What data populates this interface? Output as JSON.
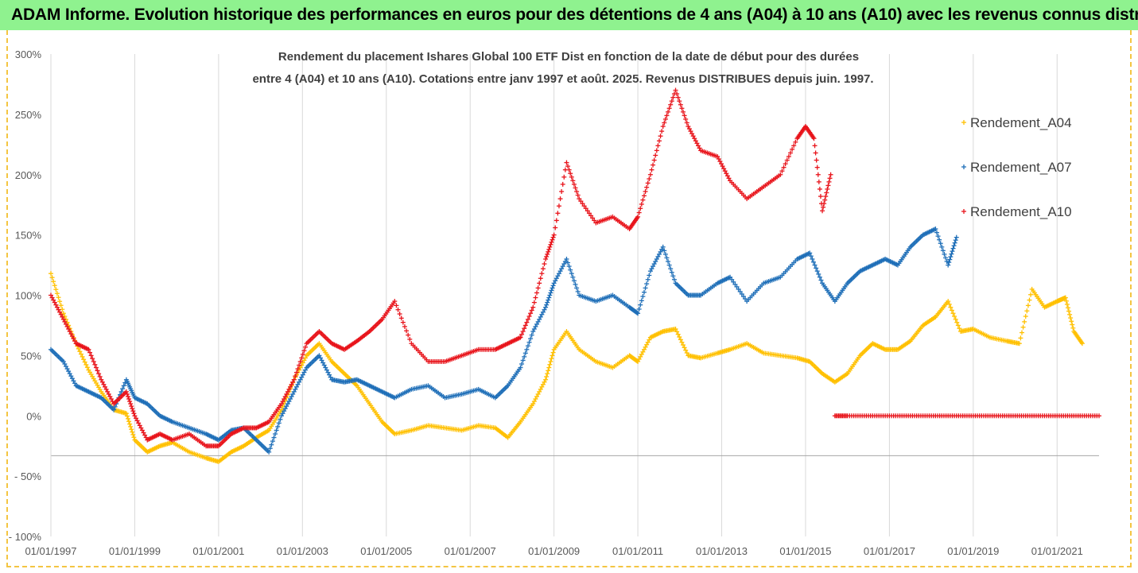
{
  "banner": {
    "title": "ADAM Informe. Evolution historique des performances en euros pour des détentions de 4 ans (A04) à 10 ans (A10) avec les revenus connus distribués"
  },
  "colors": {
    "A04": "#ffc000",
    "A07": "#1f6fb8",
    "A10": "#e8141b",
    "banner_bg": "#8ff28f",
    "gridline": "#d9d9d9"
  },
  "chart_data": {
    "type": "scatter",
    "title_lines": [
      "Rendement du placement Ishares Global 100 ETF Dist en fonction de la date de début pour des durées",
      "entre 4 (A04) et 10 ans (A10). Cotations entre janv 1997 et août. 2025. Revenus DISTRIBUES depuis juin. 1997."
    ],
    "y_ticks": [
      "300%",
      "250%",
      "200%",
      "150%",
      "100%",
      "50%",
      "0%",
      "- 50%",
      "- 100%"
    ],
    "y_tick_values": [
      300,
      250,
      200,
      150,
      100,
      50,
      0,
      -50,
      -100
    ],
    "ylim": [
      -100,
      300
    ],
    "x_ticks": [
      "01/01/1997",
      "01/01/1999",
      "01/01/2001",
      "01/01/2003",
      "01/01/2005",
      "01/01/2007",
      "01/01/2009",
      "01/01/2011",
      "01/01/2013",
      "01/01/2015",
      "01/01/2017",
      "01/01/2019",
      "01/01/2021"
    ],
    "x_tick_values": [
      1997,
      1999,
      2001,
      2003,
      2005,
      2007,
      2009,
      2011,
      2013,
      2015,
      2017,
      2019,
      2021
    ],
    "xlim": [
      1997,
      2022
    ],
    "marker": "+",
    "legend_position": "right",
    "grid": "vertical",
    "series": [
      {
        "name": "Rendement_A04",
        "key": "A04",
        "x": [
          1997.0,
          1997.3,
          1997.6,
          1997.9,
          1998.2,
          1998.5,
          1998.8,
          1999.0,
          1999.3,
          1999.6,
          1999.9,
          2000.3,
          2000.7,
          2001.0,
          2001.3,
          2001.6,
          2001.9,
          2002.2,
          2002.5,
          2002.8,
          2003.1,
          2003.4,
          2003.7,
          2004.0,
          2004.3,
          2004.6,
          2004.9,
          2005.2,
          2005.6,
          2006.0,
          2006.4,
          2006.8,
          2007.2,
          2007.6,
          2007.9,
          2008.2,
          2008.5,
          2008.8,
          2009.0,
          2009.3,
          2009.6,
          2010.0,
          2010.4,
          2010.8,
          2011.0,
          2011.3,
          2011.6,
          2011.9,
          2012.2,
          2012.5,
          2012.9,
          2013.2,
          2013.6,
          2014.0,
          2014.4,
          2014.8,
          2015.1,
          2015.4,
          2015.7,
          2016.0,
          2016.3,
          2016.6,
          2016.9,
          2017.2,
          2017.5,
          2017.8,
          2018.1,
          2018.4,
          2018.7,
          2019.0,
          2019.4,
          2019.8,
          2020.1,
          2020.4,
          2020.7,
          2021.0,
          2021.2,
          2021.4,
          2021.6
        ],
        "y": [
          118,
          85,
          60,
          38,
          20,
          5,
          2,
          -20,
          -30,
          -25,
          -22,
          -30,
          -35,
          -38,
          -30,
          -25,
          -18,
          -12,
          5,
          30,
          50,
          60,
          45,
          35,
          25,
          10,
          -5,
          -15,
          -12,
          -8,
          -10,
          -12,
          -8,
          -10,
          -18,
          -5,
          10,
          30,
          55,
          70,
          55,
          45,
          40,
          50,
          45,
          65,
          70,
          72,
          50,
          48,
          52,
          55,
          60,
          52,
          50,
          48,
          45,
          35,
          28,
          35,
          50,
          60,
          55,
          55,
          62,
          75,
          82,
          95,
          70,
          72,
          65,
          62,
          60,
          105,
          90,
          95,
          98,
          70,
          60
        ]
      },
      {
        "name": "Rendement_A07",
        "key": "A07",
        "x": [
          1997.0,
          1997.3,
          1997.6,
          1997.9,
          1998.2,
          1998.5,
          1998.8,
          1999.0,
          1999.3,
          1999.6,
          1999.9,
          2000.3,
          2000.7,
          2001.0,
          2001.3,
          2001.6,
          2001.9,
          2002.2,
          2002.5,
          2002.8,
          2003.1,
          2003.4,
          2003.7,
          2004.0,
          2004.3,
          2004.6,
          2004.9,
          2005.2,
          2005.6,
          2006.0,
          2006.4,
          2006.8,
          2007.2,
          2007.6,
          2007.9,
          2008.2,
          2008.5,
          2008.8,
          2009.0,
          2009.3,
          2009.6,
          2010.0,
          2010.4,
          2010.8,
          2011.0,
          2011.3,
          2011.6,
          2011.9,
          2012.2,
          2012.5,
          2012.9,
          2013.2,
          2013.6,
          2014.0,
          2014.4,
          2014.8,
          2015.1,
          2015.4,
          2015.7,
          2016.0,
          2016.3,
          2016.6,
          2016.9,
          2017.2,
          2017.5,
          2017.8,
          2018.1,
          2018.4,
          2018.6
        ],
        "y": [
          55,
          45,
          25,
          20,
          15,
          5,
          30,
          15,
          10,
          0,
          -5,
          -10,
          -15,
          -20,
          -12,
          -10,
          -20,
          -30,
          0,
          20,
          40,
          50,
          30,
          28,
          30,
          25,
          20,
          15,
          22,
          25,
          15,
          18,
          22,
          15,
          25,
          40,
          70,
          90,
          110,
          130,
          100,
          95,
          100,
          90,
          85,
          120,
          140,
          110,
          100,
          100,
          110,
          115,
          95,
          110,
          115,
          130,
          135,
          110,
          95,
          110,
          120,
          125,
          130,
          125,
          140,
          150,
          155,
          125,
          148
        ]
      },
      {
        "name": "Rendement_A10",
        "key": "A10",
        "x": [
          1997.0,
          1997.3,
          1997.6,
          1997.9,
          1998.2,
          1998.5,
          1998.8,
          1999.0,
          1999.3,
          1999.6,
          1999.9,
          2000.3,
          2000.7,
          2001.0,
          2001.3,
          2001.6,
          2001.9,
          2002.2,
          2002.5,
          2002.8,
          2003.1,
          2003.4,
          2003.7,
          2004.0,
          2004.3,
          2004.6,
          2004.9,
          2005.2,
          2005.6,
          2006.0,
          2006.4,
          2006.8,
          2007.2,
          2007.6,
          2007.9,
          2008.2,
          2008.5,
          2008.8,
          2009.0,
          2009.3,
          2009.6,
          2010.0,
          2010.4,
          2010.8,
          2011.0,
          2011.3,
          2011.6,
          2011.9,
          2012.2,
          2012.5,
          2012.9,
          2013.2,
          2013.6,
          2014.0,
          2014.4,
          2014.8,
          2015.0,
          2015.2,
          2015.4,
          2015.6
        ],
        "y": [
          100,
          80,
          60,
          55,
          30,
          10,
          20,
          0,
          -20,
          -15,
          -20,
          -15,
          -25,
          -25,
          -15,
          -10,
          -10,
          -5,
          10,
          30,
          60,
          70,
          60,
          55,
          62,
          70,
          80,
          95,
          60,
          45,
          45,
          50,
          55,
          55,
          60,
          65,
          90,
          130,
          150,
          210,
          180,
          160,
          165,
          155,
          165,
          200,
          240,
          270,
          240,
          220,
          215,
          195,
          180,
          190,
          200,
          230,
          240,
          230,
          170,
          200
        ]
      },
      {
        "name": "",
        "key": "A10_zero",
        "x": [
          2015.7,
          2016.0,
          2016.5,
          2017.0,
          2017.5,
          2018.0,
          2018.5,
          2019.0,
          2019.5,
          2020.0,
          2020.5,
          2021.0,
          2021.5,
          2022.0
        ],
        "y": [
          0,
          0,
          0,
          0,
          0,
          0,
          0,
          0,
          0,
          0,
          0,
          0,
          0,
          0
        ]
      }
    ]
  }
}
